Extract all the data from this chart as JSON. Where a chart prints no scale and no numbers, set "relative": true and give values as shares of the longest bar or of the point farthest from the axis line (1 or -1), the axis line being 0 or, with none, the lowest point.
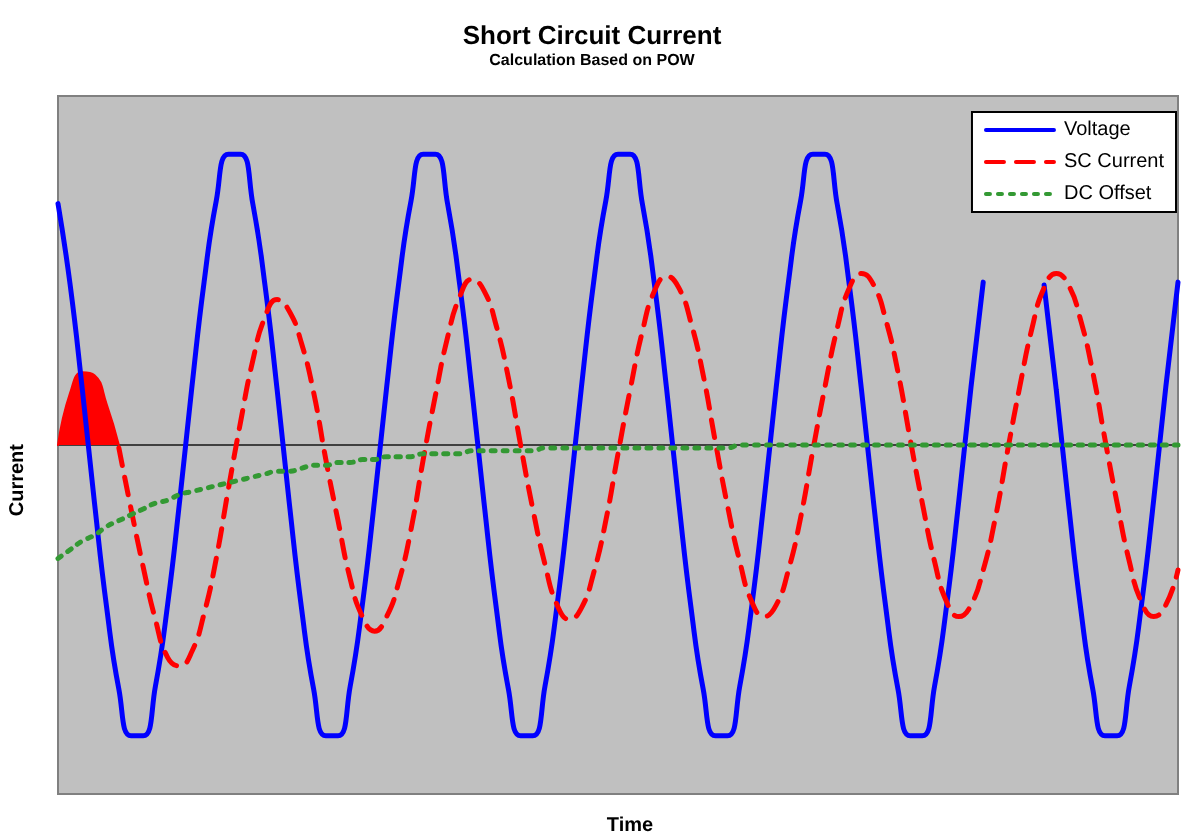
{
  "chart_data": {
    "type": "line",
    "title": "Short Circuit Current",
    "subtitle": "Calculation Based on POW",
    "xlabel": "Time",
    "ylabel": "Current",
    "relative": true,
    "marker": "none",
    "line_style": "solid",
    "grid": false,
    "legend": "top right",
    "categories": [
      null,
      null,
      null,
      null,
      null,
      null,
      null,
      null,
      null,
      null,
      null,
      null,
      null,
      null,
      null,
      null,
      null,
      null,
      null,
      null,
      null,
      null,
      null,
      null,
      null,
      null,
      null,
      null,
      null,
      null,
      null,
      null,
      null,
      null,
      null,
      null,
      null,
      null,
      null,
      null,
      null,
      null,
      null,
      null,
      null,
      null,
      null,
      null,
      null,
      null,
      null,
      null,
      null,
      null,
      null,
      null,
      null,
      null,
      null,
      null,
      null,
      null,
      null,
      null,
      null,
      null,
      null,
      null,
      null,
      null,
      null,
      null,
      null,
      null,
      null,
      null,
      null,
      null,
      null,
      null,
      null,
      null,
      null,
      null,
      null,
      null,
      null,
      null,
      null,
      null,
      null,
      null,
      null
    ],
    "series": [
      {
        "name": "Voltage",
        "color": "#0000ff",
        "values": [
          0.83,
          0.55,
          0.19,
          -0.2,
          -0.56,
          -0.84,
          -1,
          -1,
          -0.83,
          -0.55,
          -0.19,
          0.2,
          0.56,
          0.84,
          1,
          1,
          0.83,
          0.55,
          0.19,
          -0.2,
          -0.56,
          -0.84,
          -1,
          -1,
          -0.83,
          -0.55,
          -0.19,
          0.2,
          0.56,
          0.84,
          1,
          1,
          0.83,
          0.55,
          0.19,
          -0.2,
          -0.56,
          -0.84,
          -1,
          -1,
          -0.83,
          -0.55,
          -0.19,
          0.2,
          0.56,
          0.84,
          1,
          1,
          0.83,
          0.55,
          0.19,
          -0.2,
          -0.56,
          -0.84,
          -1,
          -1,
          -0.83,
          -0.55,
          -0.19,
          0.2,
          0.56,
          0.84,
          1,
          1,
          0.83,
          0.55,
          0.19,
          -0.2,
          -0.56,
          -0.84,
          -1,
          -1,
          -0.83,
          -0.55,
          -0.19,
          0.2,
          0.56,
          null,
          null,
          null,
          null,
          0.55,
          0.19,
          -0.2,
          -0.56,
          -0.84,
          -1,
          -1,
          -0.83,
          -0.55,
          -0.19,
          0.2,
          0.56
        ]
      },
      {
        "name": "SC Current",
        "color": "#ff0000",
        "line_style": "dashed",
        "values": [
          null,
          null,
          null,
          null,
          null,
          -0.01,
          -0.22,
          -0.42,
          -0.6,
          -0.73,
          -0.76,
          -0.71,
          -0.58,
          -0.39,
          -0.15,
          0.08,
          0.29,
          0.44,
          0.5,
          0.46,
          0.35,
          0.18,
          -0.05,
          -0.26,
          -0.46,
          -0.59,
          -0.64,
          -0.59,
          -0.47,
          -0.29,
          -0.05,
          0.17,
          0.37,
          0.51,
          0.57,
          0.53,
          0.41,
          0.23,
          0,
          -0.22,
          -0.41,
          -0.55,
          -0.6,
          -0.56,
          -0.44,
          -0.26,
          -0.03,
          0.19,
          0.39,
          0.53,
          0.58,
          0.54,
          0.42,
          0.24,
          0.01,
          -0.21,
          -0.4,
          -0.54,
          -0.59,
          -0.55,
          -0.43,
          -0.25,
          -0.02,
          0.2,
          0.4,
          0.54,
          0.59,
          0.55,
          0.43,
          0.25,
          0.02,
          -0.2,
          -0.4,
          -0.54,
          -0.59,
          -0.55,
          -0.43,
          -0.25,
          -0.02,
          0.2,
          0.4,
          0.54,
          0.59,
          0.55,
          0.43,
          0.25,
          0.02,
          -0.2,
          -0.4,
          -0.54,
          -0.59,
          -0.55,
          -0.43
        ]
      },
      {
        "name": "DC Offset",
        "color": "#339933",
        "line_style": "dotted",
        "values": [
          -0.39,
          -0.36,
          -0.33,
          -0.31,
          -0.28,
          -0.26,
          -0.24,
          -0.22,
          -0.2,
          -0.19,
          -0.17,
          -0.16,
          -0.15,
          -0.14,
          -0.13,
          -0.12,
          -0.11,
          -0.1,
          -0.09,
          -0.09,
          -0.08,
          -0.07,
          -0.07,
          -0.06,
          -0.06,
          -0.05,
          -0.05,
          -0.04,
          -0.04,
          -0.04,
          -0.03,
          -0.03,
          -0.03,
          -0.03,
          -0.02,
          -0.02,
          -0.02,
          -0.02,
          -0.02,
          -0.02,
          -0.01,
          -0.01,
          -0.01,
          -0.01,
          -0.01,
          -0.01,
          -0.01,
          -0.01,
          -0.01,
          -0.01,
          -0.01,
          -0.01,
          -0.01,
          -0.01,
          -0.01,
          -0.01,
          0,
          0,
          0,
          0,
          0,
          0,
          0,
          0,
          0,
          0,
          0,
          0,
          0,
          0,
          0,
          0,
          0,
          0,
          0,
          0,
          0,
          0,
          0,
          0,
          0,
          0,
          0,
          0,
          0,
          0,
          0,
          0,
          0,
          0,
          0,
          0,
          0
        ]
      },
      {
        "type": "area",
        "color": "#ff0000",
        "values": [
          0,
          0.18,
          0.25,
          0.24,
          0.14,
          0,
          null,
          null,
          null,
          null,
          null,
          null,
          null,
          null,
          null,
          null,
          null,
          null,
          null,
          null,
          null,
          null,
          null,
          null,
          null,
          null,
          null,
          null,
          null,
          null,
          null,
          null,
          null,
          null,
          null,
          null,
          null,
          null,
          null,
          null,
          null,
          null,
          null,
          null,
          null,
          null,
          null,
          null,
          null,
          null,
          null,
          null,
          null,
          null,
          null,
          null,
          null,
          null,
          null,
          null,
          null,
          null,
          null,
          null,
          null,
          null,
          null,
          null,
          null,
          null,
          null,
          null,
          null,
          null,
          null,
          null,
          null,
          null,
          null,
          null,
          null,
          null,
          null,
          null,
          null,
          null,
          null,
          null,
          null,
          null,
          null,
          null,
          null
        ]
      }
    ]
  }
}
